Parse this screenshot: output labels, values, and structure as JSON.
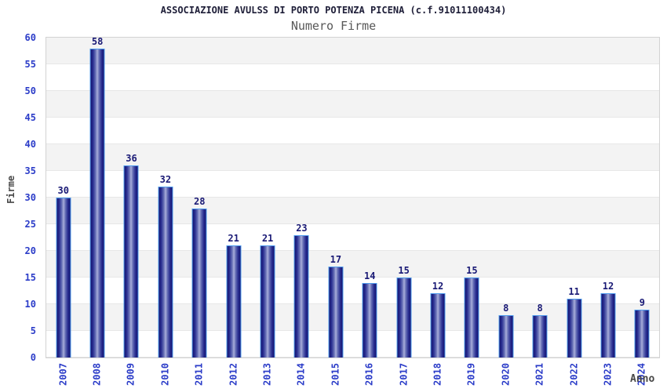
{
  "chart": {
    "title": "ASSOCIAZIONE AVULSS DI PORTO POTENZA PICENA (c.f.91011100434)",
    "subtitle": "Numero Firme",
    "ylabel": "Firme",
    "xlabel": "Anno"
  },
  "chart_data": {
    "type": "bar",
    "title": "ASSOCIAZIONE AVULSS DI PORTO POTENZA PICENA (c.f.91011100434)",
    "subtitle": "Numero Firme",
    "xlabel": "Anno",
    "ylabel": "Firme",
    "categories": [
      "2007",
      "2008",
      "2009",
      "2010",
      "2011",
      "2012",
      "2013",
      "2014",
      "2015",
      "2016",
      "2017",
      "2018",
      "2019",
      "2020",
      "2021",
      "2022",
      "2023",
      "2024"
    ],
    "values": [
      30,
      58,
      36,
      32,
      28,
      21,
      21,
      23,
      17,
      14,
      15,
      12,
      15,
      8,
      8,
      11,
      12,
      9
    ],
    "ylim": [
      0,
      60
    ],
    "ytick_step": 5,
    "grid": "alternating horizontal bands every 5 units",
    "legend_position": "none",
    "bar_labels_shown": true,
    "x_tick_rotation_deg": -90,
    "colors": {
      "bar_edge": "#14136f",
      "bar_center": "#a9aeda",
      "bar_outline": "#4f9cee",
      "value_label": "#191975",
      "axis_tick_label": "#2b3cc8",
      "axis_title": "#474747",
      "chart_title": "#1e1e38",
      "chart_subtitle": "#585858",
      "band_gray": "#f3f3f3",
      "band_white": "#ffffff",
      "plot_border": "#d2d2d2"
    }
  }
}
